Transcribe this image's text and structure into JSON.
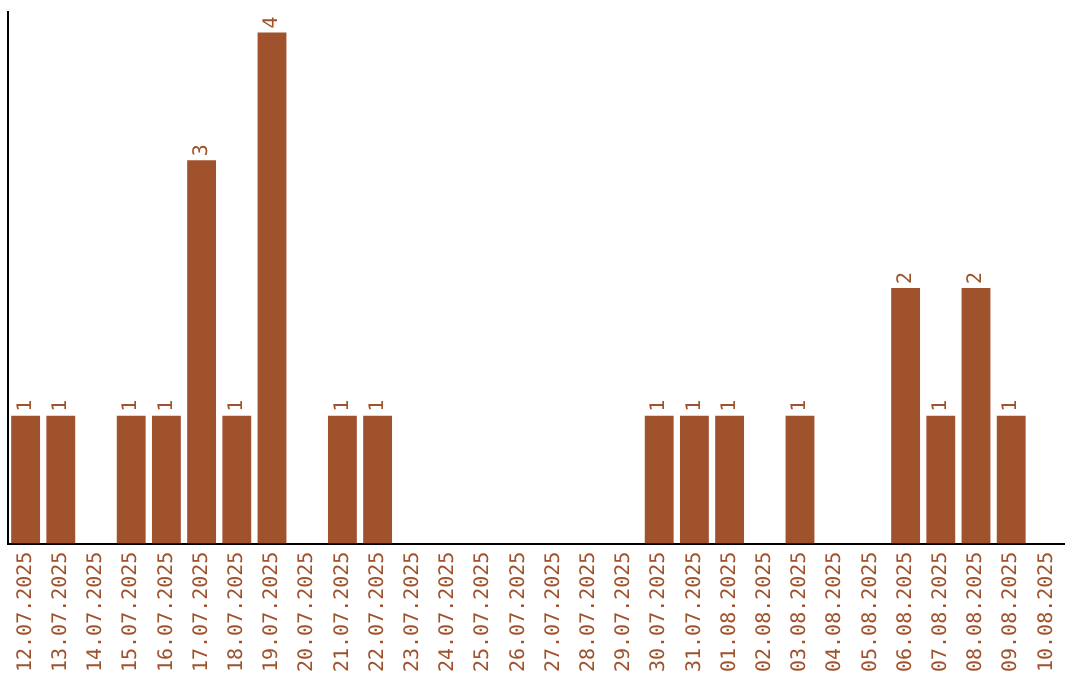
{
  "chart_data": {
    "type": "bar",
    "categories": [
      "12.07.2025",
      "13.07.2025",
      "14.07.2025",
      "15.07.2025",
      "16.07.2025",
      "17.07.2025",
      "18.07.2025",
      "19.07.2025",
      "20.07.2025",
      "21.07.2025",
      "22.07.2025",
      "23.07.2025",
      "24.07.2025",
      "25.07.2025",
      "26.07.2025",
      "27.07.2025",
      "28.07.2025",
      "29.07.2025",
      "30.07.2025",
      "31.07.2025",
      "01.08.2025",
      "02.08.2025",
      "03.08.2025",
      "04.08.2025",
      "05.08.2025",
      "06.08.2025",
      "07.08.2025",
      "08.08.2025",
      "09.08.2025",
      "10.08.2025"
    ],
    "values": [
      1,
      1,
      0,
      1,
      1,
      3,
      1,
      4,
      0,
      1,
      1,
      0,
      0,
      0,
      0,
      0,
      0,
      0,
      1,
      1,
      1,
      0,
      1,
      0,
      0,
      2,
      1,
      2,
      1,
      0
    ],
    "value_labels": [
      "1",
      "1",
      null,
      "1",
      "1",
      "3",
      "1",
      "4",
      null,
      "1",
      "1",
      null,
      null,
      null,
      null,
      null,
      null,
      null,
      "1",
      "1",
      "1",
      null,
      "1",
      null,
      null,
      "2",
      "1",
      "2",
      "1",
      null
    ],
    "color": "#a0522d",
    "ylim": [
      0,
      4.16
    ],
    "tick_labels": "x",
    "grid": false,
    "legend": false
  }
}
